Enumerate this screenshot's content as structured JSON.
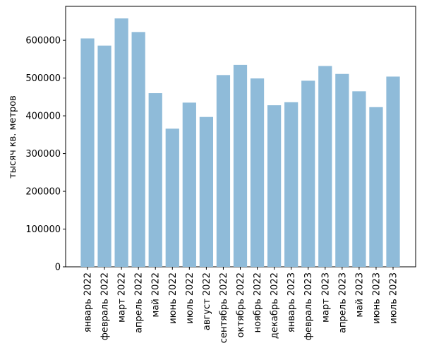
{
  "chart_data": {
    "type": "bar",
    "title": "",
    "xlabel": "",
    "ylabel": "тысяч кв. метров",
    "ylim": [
      0,
      690000
    ],
    "yticks": [
      0,
      100000,
      200000,
      300000,
      400000,
      500000,
      600000
    ],
    "grid": false,
    "bar_color": "#8fbbd9",
    "categories": [
      "январь 2022",
      "февраль 2022",
      "март 2022",
      "апрель 2022",
      "май 2022",
      "июнь 2022",
      "июль 2022",
      "август 2022",
      "сентябрь 2022",
      "октябрь 2022",
      "ноябрь 2022",
      "декабрь 2022",
      "январь 2023",
      "февраль 2023",
      "март 2023",
      "апрель 2023",
      "май 2023",
      "июнь 2023",
      "июль 2023"
    ],
    "values": [
      605000,
      586000,
      658000,
      622000,
      460000,
      366000,
      435000,
      397000,
      508000,
      535000,
      499000,
      428000,
      436000,
      493000,
      532000,
      511000,
      465000,
      423000,
      504000
    ]
  }
}
